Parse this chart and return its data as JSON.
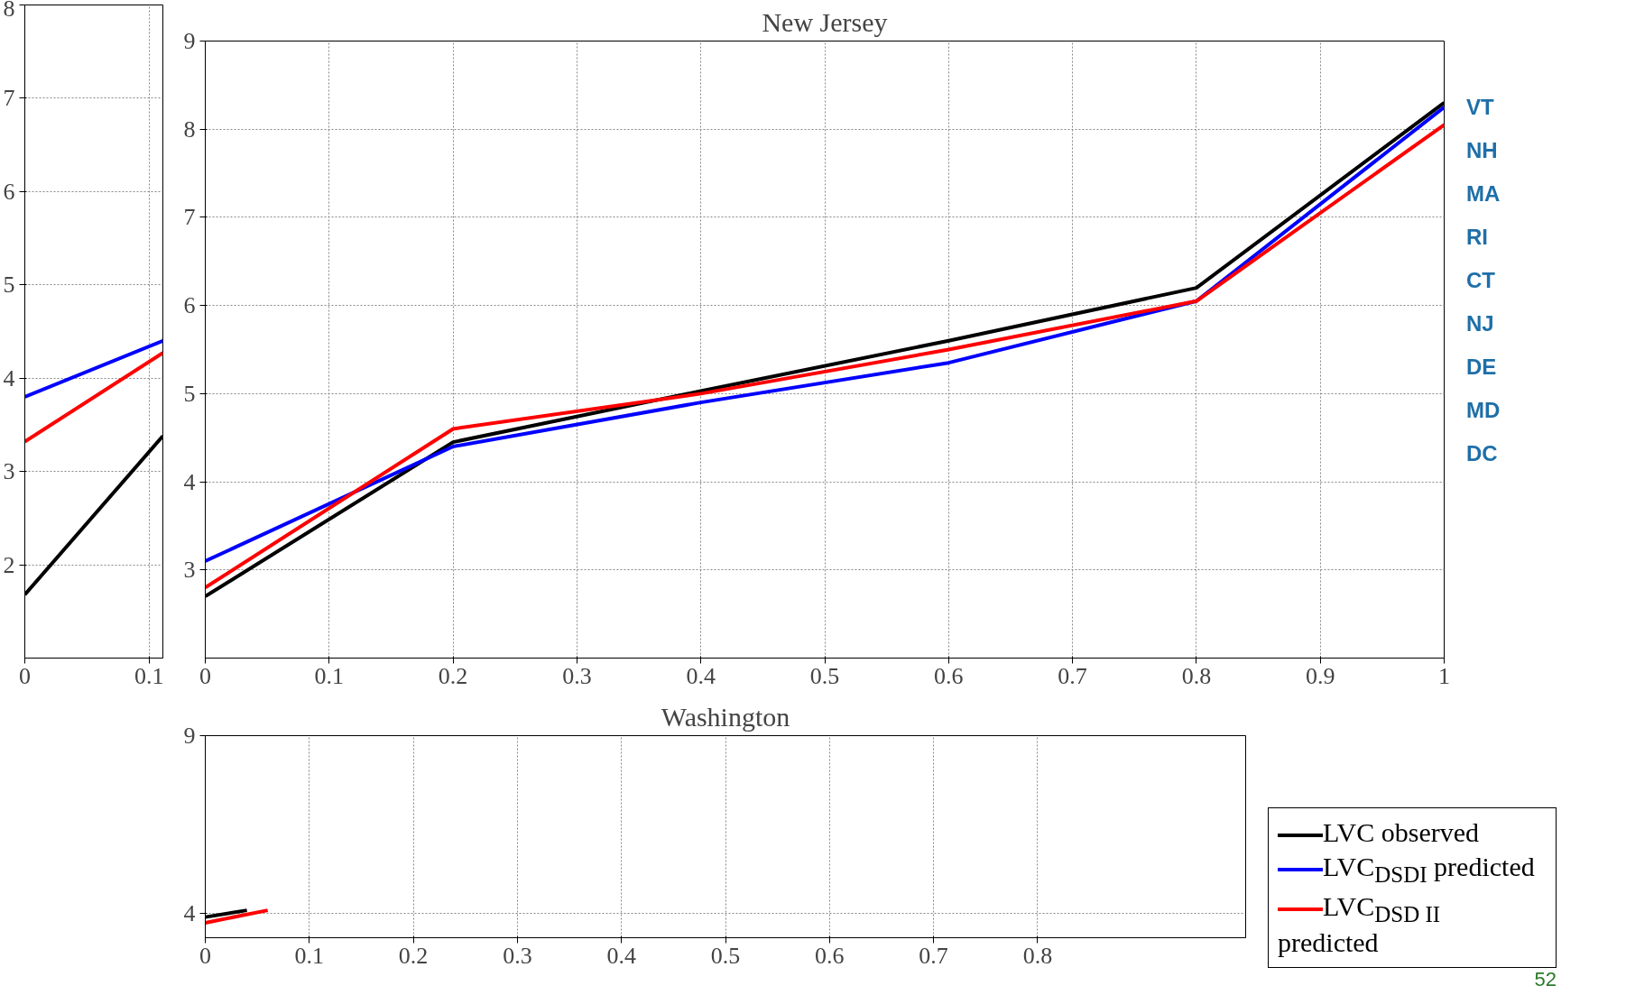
{
  "chart_data": [
    {
      "type": "line",
      "xlim": [
        0,
        0.111
      ],
      "ylim": [
        1,
        8
      ],
      "xticks": [
        0,
        0.1
      ],
      "yticks": [
        2,
        3,
        4,
        5,
        6,
        7,
        8
      ],
      "grid": true,
      "series": [
        {
          "color": "#000000",
          "x": [
            0,
            0.111
          ],
          "values": [
            1.68,
            3.38
          ]
        },
        {
          "color": "#0000ff",
          "x": [
            0,
            0.111
          ],
          "values": [
            3.8,
            4.4
          ]
        },
        {
          "color": "#ff0000",
          "x": [
            0,
            0.111
          ],
          "values": [
            3.32,
            4.27
          ]
        }
      ]
    },
    {
      "type": "line",
      "title": "New Jersey",
      "xlim": [
        0,
        1
      ],
      "ylim": [
        2,
        9
      ],
      "xticks": [
        0,
        0.1,
        0.2,
        0.3,
        0.4,
        0.5,
        0.6,
        0.7,
        0.8,
        0.9,
        1
      ],
      "yticks": [
        3,
        4,
        5,
        6,
        7,
        8,
        9
      ],
      "grid": true,
      "legend": "bottom right",
      "annotations": [
        "VT",
        "NH",
        "MA",
        "RI",
        "CT",
        "NJ",
        "DE",
        "MD",
        "DC",
        "52"
      ],
      "series": [
        {
          "name": "LVC observed",
          "color": "#000000",
          "x": [
            0,
            0.2,
            0.4,
            0.6,
            0.8,
            1
          ],
          "values": [
            2.7,
            4.45,
            5.03,
            5.6,
            6.2,
            8.3
          ]
        },
        {
          "name": "LVC$_{DSDI}$ predicted",
          "color": "#0000ff",
          "x": [
            0,
            0.2,
            0.4,
            0.6,
            0.8,
            1
          ],
          "values": [
            3.1,
            4.4,
            4.9,
            5.35,
            6.05,
            8.25
          ]
        },
        {
          "name": "LVC$_{DSD II}$ predicted",
          "color": "#ff0000",
          "x": [
            0,
            0.2,
            0.4,
            0.6,
            0.8,
            1
          ],
          "values": [
            2.8,
            4.6,
            5.0,
            5.5,
            6.05,
            8.05
          ]
        }
      ]
    },
    {
      "type": "line",
      "title": "Washington",
      "xlim": [
        0,
        1
      ],
      "ylim": [
        3.32,
        9
      ],
      "xticks": [
        0,
        0.1,
        0.2,
        0.3,
        0.4,
        0.5,
        0.6,
        0.7,
        0.8
      ],
      "yticks": [
        4,
        9
      ],
      "grid": true,
      "series": [
        {
          "color": "#000000",
          "x": [
            0,
            0.04
          ],
          "values": [
            3.9,
            4.09
          ]
        },
        {
          "color": "#ff0000",
          "x": [
            0,
            0.06
          ],
          "values": [
            3.74,
            4.09
          ]
        }
      ]
    }
  ]
}
